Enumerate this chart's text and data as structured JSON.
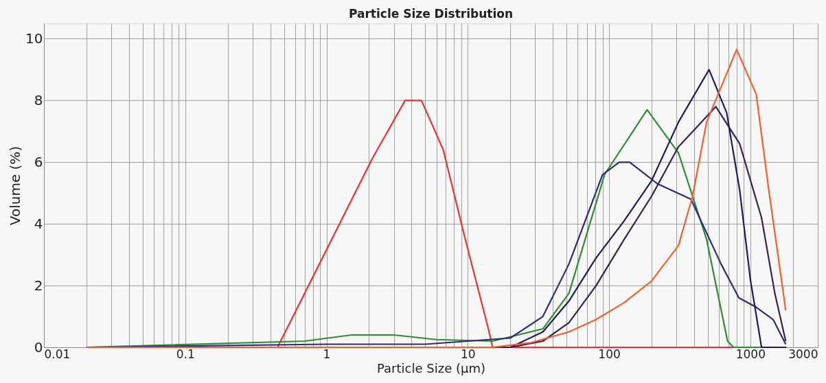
{
  "chart_data": {
    "type": "line",
    "title": "Particle Size Distribution",
    "xlabel": "Particle Size (μm)",
    "ylabel": "Volume (%)",
    "log": "x",
    "grid": true,
    "legend": false,
    "marker": "none",
    "line_style": "solid",
    "xlim": [
      0.01,
      3000
    ],
    "ylim": [
      0,
      10.5
    ],
    "yticks": [
      0,
      2,
      4,
      6,
      8,
      10
    ],
    "xticks": [
      0.01,
      {
        "value": 0.02,
        "label": null
      },
      {
        "value": 0.03,
        "label": null
      },
      {
        "value": 0.04,
        "label": null
      },
      {
        "value": 0.05,
        "label": null
      },
      {
        "value": 0.06,
        "label": null
      },
      {
        "value": 0.07,
        "label": null
      },
      {
        "value": 0.08,
        "label": null
      },
      {
        "value": 0.09,
        "label": null
      },
      0.1,
      {
        "value": 0.2,
        "label": null
      },
      {
        "value": 0.3,
        "label": null
      },
      {
        "value": 0.4,
        "label": null
      },
      {
        "value": 0.5,
        "label": null
      },
      {
        "value": 0.6,
        "label": null
      },
      {
        "value": 0.7,
        "label": null
      },
      {
        "value": 0.8,
        "label": null
      },
      {
        "value": 0.9,
        "label": null
      },
      1,
      {
        "value": 2,
        "label": null
      },
      {
        "value": 3,
        "label": null
      },
      {
        "value": 4,
        "label": null
      },
      {
        "value": 5,
        "label": null
      },
      {
        "value": 6,
        "label": null
      },
      {
        "value": 7,
        "label": null
      },
      {
        "value": 8,
        "label": null
      },
      {
        "value": 9,
        "label": null
      },
      10,
      {
        "value": 20,
        "label": null
      },
      {
        "value": 30,
        "label": null
      },
      {
        "value": 40,
        "label": null
      },
      {
        "value": 50,
        "label": null
      },
      {
        "value": 60,
        "label": null
      },
      {
        "value": 70,
        "label": null
      },
      {
        "value": 80,
        "label": null
      },
      {
        "value": 90,
        "label": null
      },
      100,
      {
        "value": 200,
        "label": null
      },
      {
        "value": 300,
        "label": null
      },
      {
        "value": 400,
        "label": null
      },
      {
        "value": 500,
        "label": null
      },
      {
        "value": 600,
        "label": null
      },
      {
        "value": 700,
        "label": null
      },
      {
        "value": 800,
        "label": null
      },
      {
        "value": 900,
        "label": null
      },
      1000,
      {
        "value": 2000,
        "label": null
      },
      3000
    ],
    "series": [
      {
        "color": "#e8332b",
        "x": [
          0.02,
          0.45,
          2.1,
          3.6,
          4.7,
          6.7,
          9.6,
          13.8,
          15,
          760
        ],
        "values": [
          0,
          0,
          6.1,
          8.0,
          8.0,
          6.4,
          3.5,
          0.7,
          0,
          0
        ]
      },
      {
        "color": "#2e8b2e",
        "x": [
          0.02,
          0.7,
          1.5,
          3,
          6,
          15,
          34,
          52,
          93,
          186,
          310,
          490,
          690,
          760,
          1500
        ],
        "values": [
          0,
          0.2,
          0.4,
          0.4,
          0.25,
          0.2,
          0.6,
          1.75,
          5.6,
          7.7,
          6.3,
          3.5,
          0.2,
          0,
          0
        ]
      },
      {
        "color": "#2a2a80",
        "x": [
          0.02,
          1,
          5,
          20,
          34,
          52,
          90,
          118,
          140,
          220,
          380,
          620,
          830,
          1100,
          1450,
          1780
        ],
        "values": [
          0,
          0.1,
          0.1,
          0.3,
          1.0,
          2.7,
          5.6,
          6.0,
          6.0,
          5.3,
          4.8,
          2.7,
          1.6,
          1.3,
          0.9,
          0.1
        ]
      },
      {
        "color": "#1c1a5c",
        "x": [
          0.02,
          20,
          34,
          52,
          81,
          128,
          200,
          310,
          510,
          680,
          840,
          1000,
          1200,
          1800
        ],
        "values": [
          0,
          0,
          0.5,
          1.5,
          2.9,
          4.1,
          5.4,
          7.3,
          9.0,
          7.6,
          5.1,
          2.2,
          0,
          0
        ]
      },
      {
        "color": "#3a1f4f",
        "x": [
          0.02,
          20,
          34,
          52,
          81,
          128,
          200,
          310,
          570,
          840,
          1200,
          1490,
          1780
        ],
        "values": [
          0,
          0,
          0.2,
          0.8,
          2.0,
          3.5,
          4.9,
          6.5,
          7.8,
          6.6,
          4.2,
          1.75,
          0.2
        ]
      },
      {
        "color": "#f0602a",
        "x": [
          0.02,
          15,
          28,
          52,
          81,
          128,
          200,
          310,
          390,
          490,
          800,
          1100,
          1350,
          1780
        ],
        "values": [
          0,
          0,
          0.15,
          0.5,
          0.9,
          1.45,
          2.15,
          3.3,
          4.9,
          7.3,
          9.65,
          8.2,
          5.1,
          1.2
        ]
      }
    ]
  }
}
